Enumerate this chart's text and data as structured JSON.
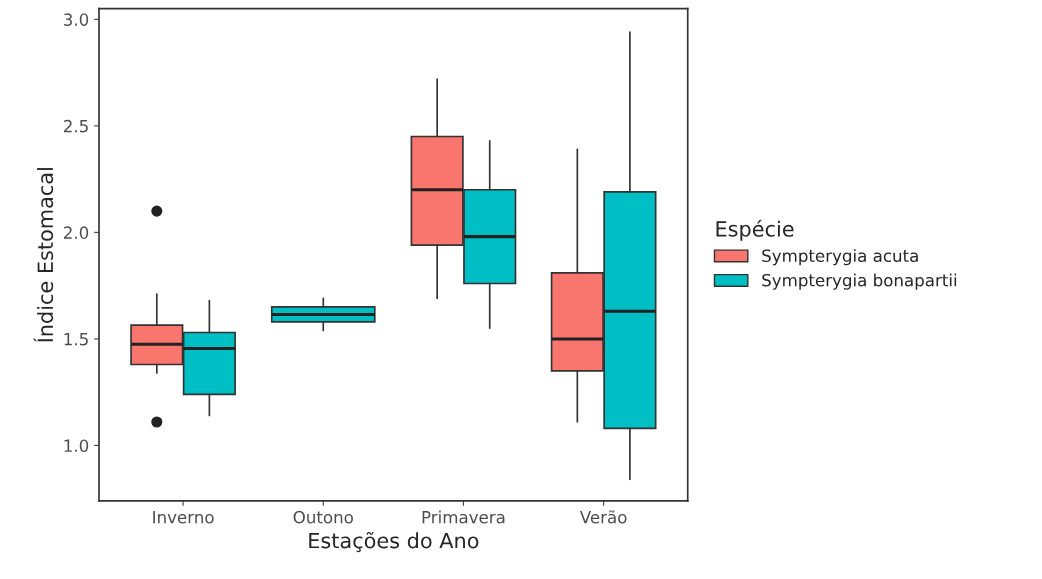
{
  "chart_data": {
    "type": "box",
    "xlabel": "Estações do Ano",
    "ylabel": "Índice Estomacal",
    "legend_title": "Espécie",
    "legend": "right",
    "grid": false,
    "categories": [
      "Inverno",
      "Outono",
      "Primavera",
      "Verão"
    ],
    "ylim": [
      0.74,
      3.05
    ],
    "yticks": [
      {
        "value": 1.0,
        "label": "1.0"
      },
      {
        "value": 1.5,
        "label": "1.5"
      },
      {
        "value": 2.0,
        "label": "2.0"
      },
      {
        "value": 2.5,
        "label": "2.5"
      },
      {
        "value": 3.0,
        "label": "3.0"
      }
    ],
    "series": [
      {
        "name": "Sympterygia acuta",
        "color": "#f8766d",
        "boxes": [
          {
            "low": 1.34,
            "q1": 1.38,
            "median": 1.475,
            "q3": 1.565,
            "high": 1.71,
            "outliers": [
              2.1,
              1.11
            ]
          },
          null,
          {
            "low": 1.69,
            "q1": 1.94,
            "median": 2.2,
            "q3": 2.45,
            "high": 2.72
          },
          {
            "low": 1.11,
            "q1": 1.35,
            "median": 1.5,
            "q3": 1.81,
            "high": 2.39
          }
        ]
      },
      {
        "name": "Sympterygia bonapartii",
        "color": "#00bfc4",
        "boxes": [
          {
            "low": 1.14,
            "q1": 1.24,
            "median": 1.455,
            "q3": 1.53,
            "high": 1.68
          },
          {
            "low": 1.54,
            "q1": 1.58,
            "median": 1.615,
            "q3": 1.65,
            "high": 1.69
          },
          {
            "low": 1.55,
            "q1": 1.76,
            "median": 1.98,
            "q3": 2.2,
            "high": 2.43
          },
          {
            "low": 0.84,
            "q1": 1.08,
            "median": 1.63,
            "q3": 2.19,
            "high": 2.94
          }
        ]
      }
    ]
  }
}
